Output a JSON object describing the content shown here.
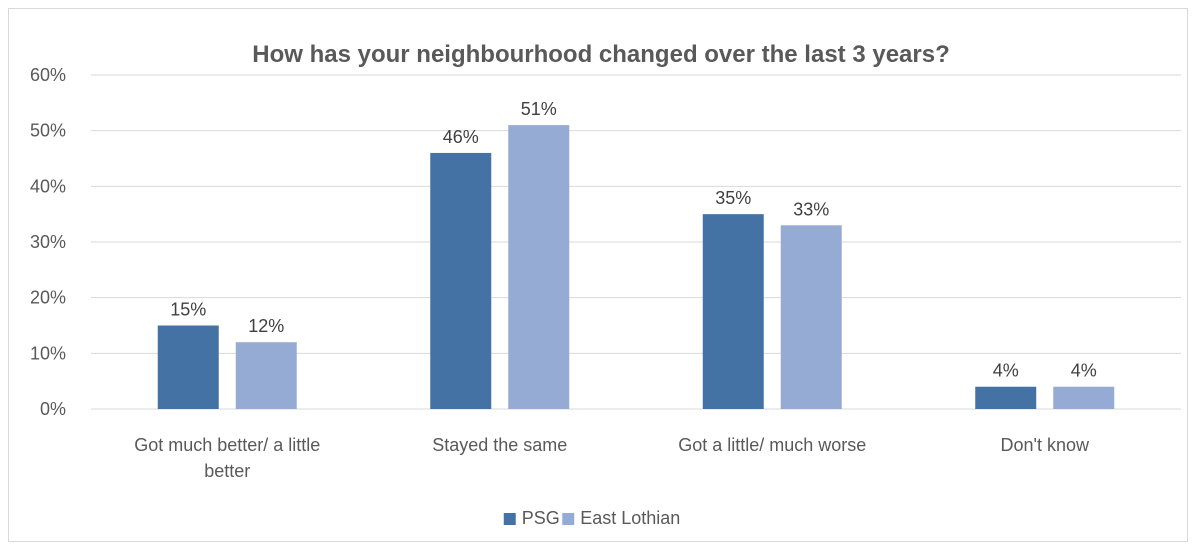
{
  "chart_data": {
    "type": "bar",
    "title": "How has your neighbourhood changed over the last 3 years?",
    "categories": [
      [
        "Got much better/ a little",
        "better"
      ],
      [
        "Stayed the same"
      ],
      [
        "Got a little/ much worse"
      ],
      [
        "Don't know"
      ]
    ],
    "series": [
      {
        "name": "PSG",
        "values": [
          15,
          46,
          35,
          4
        ],
        "labels": [
          "15%",
          "46%",
          "35%",
          "4%"
        ],
        "color": "#4472a4"
      },
      {
        "name": "East Lothian",
        "values": [
          12,
          51,
          33,
          4
        ],
        "labels": [
          "12%",
          "51%",
          "33%",
          "4%"
        ],
        "color": "#95abd3"
      }
    ],
    "ylim": [
      0,
      60
    ],
    "yticks": [
      0,
      10,
      20,
      30,
      40,
      50,
      60
    ],
    "ytick_labels": [
      "0%",
      "10%",
      "20%",
      "30%",
      "40%",
      "50%",
      "60%"
    ],
    "grid": true,
    "legend": "bottom",
    "gridline_color": "#d9d9d9"
  }
}
